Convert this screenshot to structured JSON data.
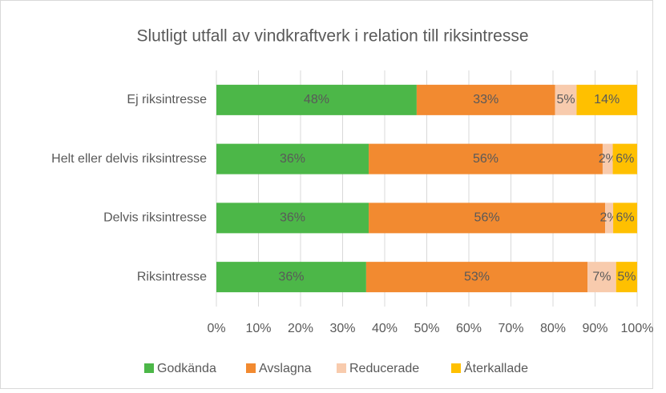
{
  "chart_data": {
    "type": "stacked-barh",
    "title": "Slutligt utfall av vindkraftverk i relation till riksintresse",
    "categories": [
      "Ej riksintresse",
      "Helt eller delvis riksintresse",
      "Delvis riksintresse",
      "Riksintresse"
    ],
    "series": [
      {
        "name": "Godkända",
        "color": "#4cb748",
        "values": [
          47.6,
          36.2,
          36.2,
          35.6
        ],
        "value_labels": [
          "48%",
          "36%",
          "36%",
          "36%"
        ]
      },
      {
        "name": "Avslagna",
        "color": "#f28a30",
        "values": [
          32.9,
          55.6,
          56.2,
          52.6
        ],
        "value_labels": [
          "33%",
          "56%",
          "56%",
          "53%"
        ]
      },
      {
        "name": "Reducerade",
        "color": "#f8cbad",
        "values": [
          5.1,
          2.4,
          1.9,
          6.8
        ],
        "value_labels": [
          "5%",
          "2%",
          "2%",
          "7%"
        ]
      },
      {
        "name": "Återkallade",
        "color": "#ffc000",
        "values": [
          14.4,
          5.8,
          5.7,
          5.0
        ],
        "value_labels": [
          "14%",
          "6%",
          "6%",
          "5%"
        ]
      }
    ],
    "xlim": [
      0,
      100
    ],
    "xticks": [
      {
        "value": 0,
        "label": "0%"
      },
      {
        "value": 10,
        "label": "10%"
      },
      {
        "value": 20,
        "label": "20%"
      },
      {
        "value": 30,
        "label": "30%"
      },
      {
        "value": 40,
        "label": "40%"
      },
      {
        "value": 50,
        "label": "50%"
      },
      {
        "value": 60,
        "label": "60%"
      },
      {
        "value": 70,
        "label": "70%"
      },
      {
        "value": 80,
        "label": "80%"
      },
      {
        "value": 90,
        "label": "90%"
      },
      {
        "value": 100,
        "label": "100%"
      }
    ],
    "grid": true,
    "legend": "bottom"
  }
}
